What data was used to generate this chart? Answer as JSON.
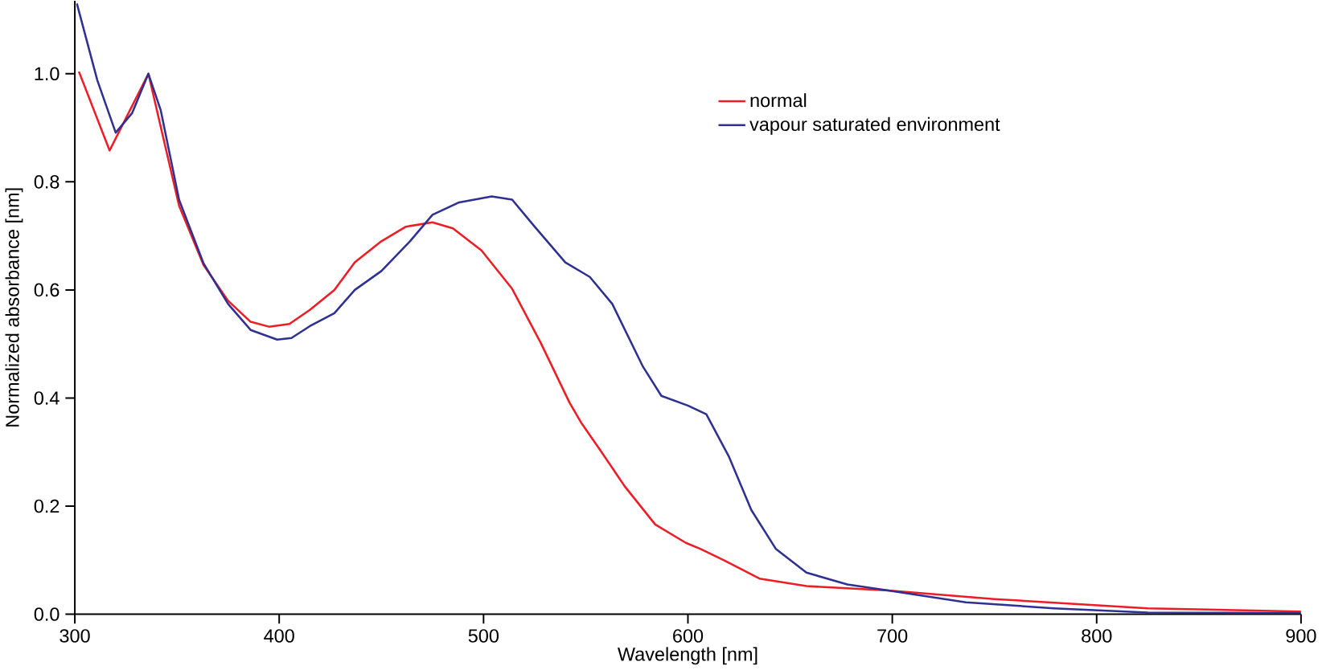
{
  "chart_data": {
    "type": "line",
    "xlabel": "Wavelength [nm]",
    "ylabel": "Normalized absorbance [nm]",
    "xlim": [
      300,
      900
    ],
    "ylim": [
      0,
      1.135
    ],
    "xticks": [
      300,
      400,
      500,
      600,
      700,
      800,
      900
    ],
    "yticks": [
      {
        "value": 0,
        "label": "0.0"
      },
      {
        "value": 0.2,
        "label": "0.2"
      },
      {
        "value": 0.4,
        "label": "0.4"
      },
      {
        "value": 0.6,
        "label": "0.6"
      },
      {
        "value": 0.8,
        "label": "0.8"
      },
      {
        "value": 1.0,
        "label": "1.0"
      }
    ],
    "legend": "top right",
    "grid": false,
    "marker": "none",
    "line_style": "solid",
    "series": [
      {
        "name": "normal",
        "color": "#ee1c25",
        "x": [
          302,
          317,
          336,
          351,
          363,
          375,
          386,
          395,
          405,
          415,
          427,
          437,
          450,
          462,
          475,
          485,
          499,
          514,
          528,
          542,
          548,
          557,
          569,
          584,
          599,
          606,
          618,
          635,
          658,
          698,
          750,
          825,
          900
        ],
        "values": [
          1.004,
          0.858,
          1.0,
          0.756,
          0.646,
          0.58,
          0.541,
          0.532,
          0.537,
          0.563,
          0.6,
          0.651,
          0.69,
          0.717,
          0.725,
          0.714,
          0.673,
          0.602,
          0.502,
          0.392,
          0.353,
          0.304,
          0.237,
          0.166,
          0.132,
          0.121,
          0.099,
          0.066,
          0.052,
          0.044,
          0.028,
          0.011,
          0.005
        ]
      },
      {
        "name": "vapour saturated environment",
        "color": "#2e3192",
        "x": [
          301,
          311,
          320,
          328,
          336,
          342,
          351,
          363,
          375,
          386,
          399,
          406,
          415,
          427,
          437,
          450,
          464,
          475,
          488,
          504,
          514,
          525,
          540,
          552,
          563,
          578,
          587,
          600,
          609,
          620,
          631,
          643,
          658,
          678,
          698,
          736,
          779,
          825,
          900
        ],
        "values": [
          1.13,
          0.988,
          0.891,
          0.927,
          1.0,
          0.933,
          0.767,
          0.649,
          0.574,
          0.526,
          0.508,
          0.511,
          0.533,
          0.557,
          0.6,
          0.635,
          0.69,
          0.739,
          0.762,
          0.773,
          0.767,
          0.717,
          0.651,
          0.624,
          0.574,
          0.458,
          0.404,
          0.386,
          0.37,
          0.292,
          0.193,
          0.121,
          0.077,
          0.055,
          0.044,
          0.022,
          0.011,
          0.003,
          0.002
        ]
      }
    ]
  }
}
